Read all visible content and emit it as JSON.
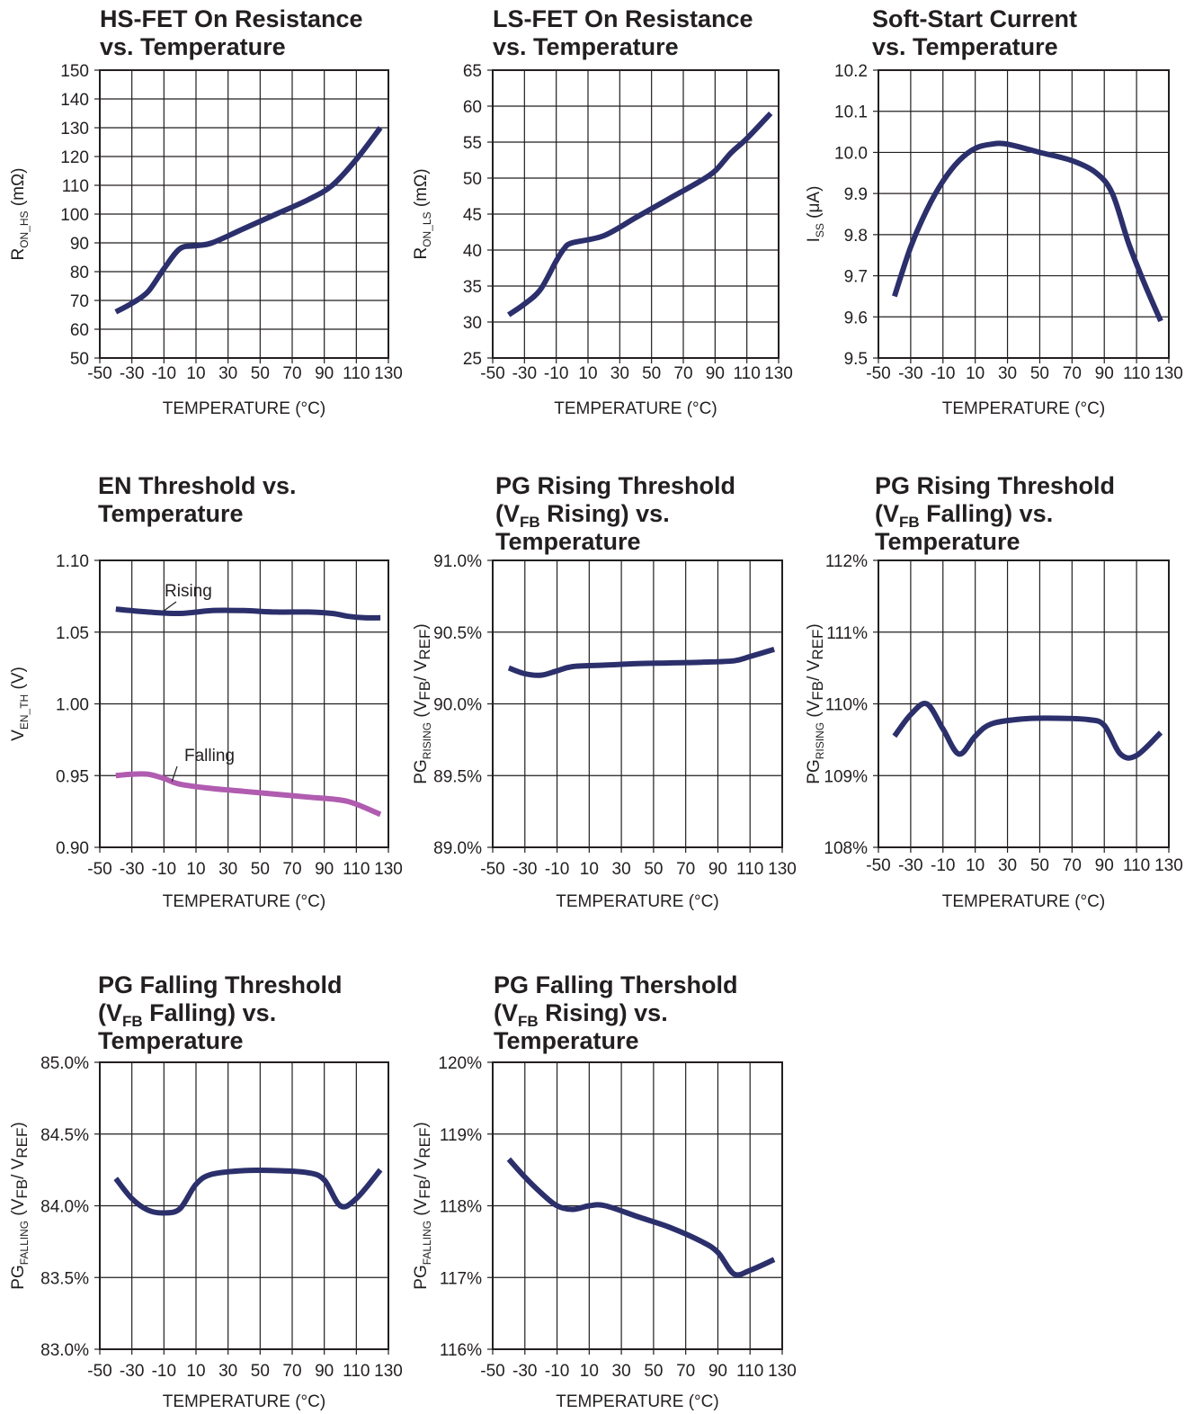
{
  "colors": {
    "series": "#2b2f6b",
    "series_alt": "#b05cb0",
    "grid": "#231f20",
    "text": "#231f20"
  },
  "chart_data": [
    {
      "id": "hs-fet",
      "type": "line",
      "title": [
        "HS-FET On Resistance",
        "vs. Temperature"
      ],
      "xlabel": "TEMPERATURE (°C)",
      "ylabel": {
        "main": "R",
        "sub": "ON_HS",
        "tail": " (mΩ)"
      },
      "xlim": [
        -50,
        130
      ],
      "ylim": [
        50,
        150
      ],
      "x_ticks": [
        "-50",
        "-30",
        "-10",
        "10",
        "30",
        "50",
        "70",
        "90",
        "110",
        "130"
      ],
      "y_ticks": [
        "50",
        "60",
        "70",
        "80",
        "90",
        "100",
        "110",
        "120",
        "130",
        "140",
        "150"
      ],
      "series": [
        {
          "color": "series",
          "x": [
            -40,
            -30,
            -20,
            -10,
            0,
            10,
            20,
            40,
            60,
            80,
            95,
            110,
            125
          ],
          "y": [
            66,
            69,
            73,
            81,
            88,
            89,
            90,
            95,
            100,
            105,
            110,
            119,
            130
          ]
        }
      ]
    },
    {
      "id": "ls-fet",
      "type": "line",
      "title": [
        "LS-FET On Resistance",
        "vs. Temperature"
      ],
      "xlabel": "TEMPERATURE (°C)",
      "ylabel": {
        "main": "R",
        "sub": "ON_LS",
        "tail": " (mΩ)"
      },
      "xlim": [
        -50,
        130
      ],
      "ylim": [
        25,
        65
      ],
      "x_ticks": [
        "-50",
        "-30",
        "-10",
        "10",
        "30",
        "50",
        "70",
        "90",
        "110",
        "130"
      ],
      "y_ticks": [
        "25",
        "30",
        "35",
        "40",
        "45",
        "50",
        "55",
        "60",
        "65"
      ],
      "series": [
        {
          "color": "series",
          "x": [
            -40,
            -30,
            -20,
            -10,
            -5,
            0,
            20,
            40,
            60,
            80,
            90,
            100,
            110,
            125
          ],
          "y": [
            31,
            32.5,
            34.5,
            38.5,
            40.2,
            41,
            42,
            44.5,
            47,
            49.5,
            51,
            53.5,
            55.5,
            59
          ]
        }
      ]
    },
    {
      "id": "soft-start",
      "type": "line",
      "title": [
        "Soft-Start Current",
        "vs. Temperature"
      ],
      "xlabel": "TEMPERATURE (°C)",
      "ylabel": {
        "main": "I",
        "sub": "SS",
        "tail": " (μA)"
      },
      "xlim": [
        -50,
        130
      ],
      "ylim": [
        9.5,
        10.2
      ],
      "x_ticks": [
        "-50",
        "-30",
        "-10",
        "10",
        "30",
        "50",
        "70",
        "90",
        "110",
        "130"
      ],
      "y_ticks": [
        "9.5",
        "9.6",
        "9.7",
        "9.8",
        "9.9",
        "10.0",
        "10.1",
        "10.2"
      ],
      "series": [
        {
          "color": "series",
          "x": [
            -40,
            -30,
            -20,
            -10,
            0,
            10,
            20,
            30,
            50,
            70,
            85,
            95,
            105,
            115,
            125
          ],
          "y": [
            9.65,
            9.77,
            9.86,
            9.93,
            9.98,
            10.01,
            10.02,
            10.02,
            10.0,
            9.98,
            9.95,
            9.9,
            9.78,
            9.68,
            9.59
          ]
        }
      ]
    },
    {
      "id": "en-threshold",
      "type": "line",
      "title": [
        "EN Threshold vs.",
        "Temperature"
      ],
      "xlabel": "TEMPERATURE (°C)",
      "ylabel": {
        "main": "V",
        "sub": "EN_TH",
        "tail": " (V)"
      },
      "xlim": [
        -50,
        130
      ],
      "ylim": [
        0.9,
        1.1
      ],
      "x_ticks": [
        "-50",
        "-30",
        "-10",
        "10",
        "30",
        "50",
        "70",
        "90",
        "110",
        "130"
      ],
      "y_ticks": [
        "0.90",
        "0.95",
        "1.00",
        "1.05",
        "1.10"
      ],
      "series": [
        {
          "name": "Rising",
          "color": "series",
          "x": [
            -40,
            -20,
            0,
            20,
            40,
            60,
            80,
            95,
            105,
            115,
            125
          ],
          "y": [
            1.066,
            1.064,
            1.063,
            1.065,
            1.065,
            1.064,
            1.064,
            1.063,
            1.061,
            1.06,
            1.06
          ]
        },
        {
          "name": "Falling",
          "color": "series_alt",
          "x": [
            -40,
            -30,
            -20,
            -10,
            0,
            20,
            40,
            60,
            80,
            100,
            110,
            125
          ],
          "y": [
            0.95,
            0.951,
            0.951,
            0.948,
            0.944,
            0.941,
            0.939,
            0.937,
            0.935,
            0.933,
            0.93,
            0.923
          ]
        }
      ]
    },
    {
      "id": "pg-rising-vfb-rising",
      "type": "line",
      "title": [
        "PG Rising Threshold",
        "(V|FB| Rising) vs.",
        "Temperature"
      ],
      "xlabel": "TEMPERATURE (°C)",
      "ylabel": {
        "main": "PG",
        "sub": "RISING",
        "tail": " (V|FB|/ V|REF|)"
      },
      "xlim": [
        -50,
        130
      ],
      "ylim": [
        89,
        91
      ],
      "x_ticks": [
        "-50",
        "-30",
        "-10",
        "10",
        "30",
        "50",
        "70",
        "90",
        "110",
        "130"
      ],
      "y_ticks": [
        "89.0%",
        "89.5%",
        "90.0%",
        "90.5%",
        "91.0%"
      ],
      "series": [
        {
          "color": "series",
          "x": [
            -40,
            -30,
            -20,
            -10,
            0,
            20,
            40,
            60,
            80,
            100,
            110,
            125
          ],
          "y": [
            90.25,
            90.21,
            90.2,
            90.23,
            90.26,
            90.27,
            90.28,
            90.285,
            90.29,
            90.3,
            90.33,
            90.38
          ]
        }
      ]
    },
    {
      "id": "pg-rising-vfb-falling",
      "type": "line",
      "title": [
        "PG Rising Threshold",
        "(V|FB| Falling) vs.",
        "Temperature"
      ],
      "xlabel": "TEMPERATURE (°C)",
      "ylabel": {
        "main": "PG",
        "sub": "RISING",
        "tail": " (V|FB|/ V|REF|)"
      },
      "xlim": [
        -50,
        130
      ],
      "ylim": [
        108,
        112
      ],
      "x_ticks": [
        "-50",
        "-30",
        "-10",
        "10",
        "30",
        "50",
        "70",
        "90",
        "110",
        "130"
      ],
      "y_ticks": [
        "108%",
        "109%",
        "110%",
        "111%",
        "112%"
      ],
      "series": [
        {
          "color": "series",
          "x": [
            -40,
            -30,
            -20,
            -10,
            0,
            10,
            20,
            40,
            60,
            80,
            90,
            100,
            110,
            125
          ],
          "y": [
            109.55,
            109.85,
            110.0,
            109.65,
            109.3,
            109.55,
            109.72,
            109.79,
            109.8,
            109.78,
            109.7,
            109.3,
            109.28,
            109.6
          ]
        }
      ]
    },
    {
      "id": "pg-falling-vfb-falling",
      "type": "line",
      "title": [
        "PG Falling Threshold",
        "(V|FB| Falling) vs.",
        "Temperature"
      ],
      "xlabel": "TEMPERATURE (°C)",
      "ylabel": {
        "main": "PG",
        "sub": "FALLING",
        "tail": " (V|FB|/ V|REF|)"
      },
      "xlim": [
        -50,
        130
      ],
      "ylim": [
        83,
        85
      ],
      "x_ticks": [
        "-50",
        "-30",
        "-10",
        "10",
        "30",
        "50",
        "70",
        "90",
        "110",
        "130"
      ],
      "y_ticks": [
        "83.0%",
        "83.5%",
        "84.0%",
        "84.5%",
        "85.0%"
      ],
      "series": [
        {
          "color": "series",
          "x": [
            -40,
            -30,
            -20,
            -10,
            0,
            10,
            20,
            40,
            60,
            80,
            90,
            100,
            110,
            125
          ],
          "y": [
            84.19,
            84.05,
            83.97,
            83.95,
            83.98,
            84.15,
            84.22,
            84.245,
            84.245,
            84.23,
            84.18,
            84.0,
            84.05,
            84.25
          ]
        }
      ]
    },
    {
      "id": "pg-falling-vfb-rising",
      "type": "line",
      "title": [
        "PG Falling Thershold",
        "(V|FB| Rising) vs.",
        "Temperature"
      ],
      "xlabel": "TEMPERATURE (°C)",
      "ylabel": {
        "main": "PG",
        "sub": "FALLING",
        "tail": " (V|FB|/ V|REF|)"
      },
      "xlim": [
        -50,
        130
      ],
      "ylim": [
        116,
        120
      ],
      "x_ticks": [
        "-50",
        "-30",
        "-10",
        "10",
        "30",
        "50",
        "70",
        "90",
        "110",
        "130"
      ],
      "y_ticks": [
        "116%",
        "117%",
        "118%",
        "119%",
        "120%"
      ],
      "series": [
        {
          "color": "series",
          "x": [
            -40,
            -30,
            -20,
            -10,
            0,
            10,
            20,
            40,
            60,
            80,
            90,
            100,
            110,
            125
          ],
          "y": [
            118.65,
            118.4,
            118.18,
            118.0,
            117.95,
            118.0,
            118.0,
            117.85,
            117.7,
            117.5,
            117.35,
            117.05,
            117.1,
            117.25
          ]
        }
      ]
    }
  ]
}
